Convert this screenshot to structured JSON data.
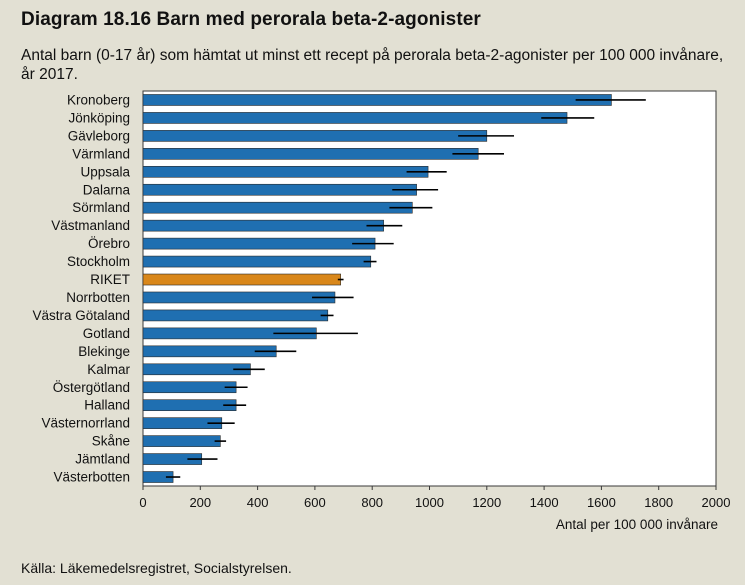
{
  "header": {
    "title": "Diagram 18.16 Barn med perorala beta-2-agonister",
    "subtitle": "Antal barn (0-17 år) som hämtat ut minst ett recept på perorala beta-2-agonister per 100 000 invånare, år 2017."
  },
  "footer": {
    "source": "Källa: Läkemedelsregistret, Socialstyrelsen."
  },
  "chart_data": {
    "type": "bar",
    "orientation": "horizontal",
    "title": "Diagram 18.16 Barn med perorala beta-2-agonister",
    "xlabel": "Antal per 100 000 invånare",
    "ylabel": "",
    "xlim": [
      0,
      2000
    ],
    "xticks": [
      0,
      200,
      400,
      600,
      800,
      1000,
      1200,
      1400,
      1600,
      1800,
      2000
    ],
    "grid": false,
    "legend": "none",
    "colors": {
      "default": "#1f6fb1",
      "highlight": "#d9871a",
      "error": "#000000",
      "border": "#3a3a3a",
      "plot_bg": "#ffffff"
    },
    "categories": [
      "Kronoberg",
      "Jönköping",
      "Gävleborg",
      "Värmland",
      "Uppsala",
      "Dalarna",
      "Sörmland",
      "Västmanland",
      "Örebro",
      "Stockholm",
      "RIKET",
      "Norrbotten",
      "Västra Götaland",
      "Gotland",
      "Blekinge",
      "Kalmar",
      "Östergötland",
      "Halland",
      "Västernorrland",
      "Skåne",
      "Jämtland",
      "Västerbotten"
    ],
    "values": [
      1635,
      1480,
      1200,
      1170,
      995,
      955,
      940,
      840,
      810,
      795,
      690,
      670,
      645,
      605,
      465,
      375,
      325,
      325,
      275,
      270,
      205,
      105
    ],
    "error_low": [
      1510,
      1390,
      1100,
      1080,
      920,
      870,
      860,
      780,
      730,
      770,
      680,
      590,
      620,
      455,
      390,
      315,
      285,
      280,
      225,
      250,
      155,
      80
    ],
    "error_high": [
      1755,
      1575,
      1295,
      1260,
      1060,
      1030,
      1010,
      905,
      875,
      815,
      700,
      735,
      665,
      750,
      535,
      425,
      365,
      360,
      320,
      290,
      260,
      130
    ],
    "highlight": [
      "RIKET"
    ]
  }
}
